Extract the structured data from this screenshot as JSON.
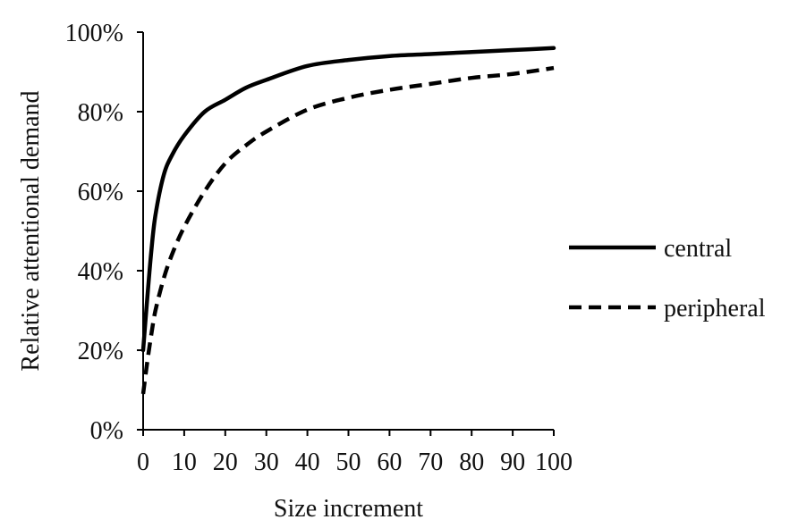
{
  "chart_data": {
    "type": "line",
    "title": "",
    "xlabel": "Size increment",
    "ylabel": "Relative attentional demand",
    "xlim": [
      0,
      100
    ],
    "ylim": [
      0,
      100
    ],
    "x_ticks": [
      "0",
      "10",
      "20",
      "30",
      "40",
      "50",
      "60",
      "70",
      "80",
      "90",
      "100"
    ],
    "y_ticks": [
      "0%",
      "20%",
      "40%",
      "60%",
      "80%",
      "100%"
    ],
    "grid": false,
    "legend_position": "right",
    "series": [
      {
        "name": "central",
        "style": "solid",
        "color": "#000000",
        "x": [
          0,
          1,
          2,
          3,
          5,
          7,
          10,
          15,
          20,
          25,
          30,
          40,
          50,
          60,
          70,
          80,
          90,
          100
        ],
        "y": [
          20,
          33,
          45,
          54,
          64,
          69,
          74,
          80,
          83,
          86,
          88,
          91.5,
          93,
          94,
          94.5,
          95,
          95.5,
          96
        ]
      },
      {
        "name": "peripheral",
        "style": "dashed",
        "color": "#000000",
        "x": [
          0,
          1,
          2,
          3,
          5,
          7,
          10,
          15,
          20,
          25,
          30,
          40,
          50,
          60,
          70,
          80,
          90,
          100
        ],
        "y": [
          9,
          17,
          24,
          30,
          38,
          44,
          51,
          60,
          67,
          71.5,
          75,
          80.5,
          83.5,
          85.5,
          87,
          88.5,
          89.5,
          91
        ]
      }
    ]
  }
}
